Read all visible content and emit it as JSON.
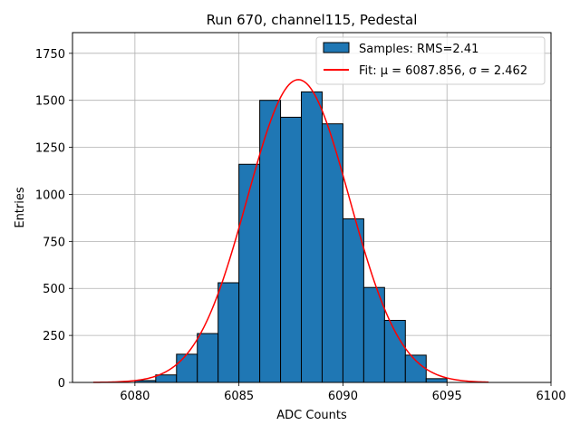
{
  "chart_data": {
    "type": "bar",
    "title": "Run 670, channel115, Pedestal",
    "xlabel": "ADC Counts",
    "ylabel": "Entries",
    "xlim": [
      6077,
      6100
    ],
    "ylim": [
      0,
      1860
    ],
    "xticks": [
      6080,
      6085,
      6090,
      6095,
      6100
    ],
    "yticks": [
      0,
      250,
      500,
      750,
      1000,
      1250,
      1500,
      1750
    ],
    "grid": true,
    "legend_position": "top-right",
    "histogram": {
      "name": "Samples: RMS=2.41",
      "color": "#1f77b4",
      "bin_edges": [
        6080,
        6081,
        6082,
        6083,
        6084,
        6085,
        6086,
        6087,
        6088,
        6089,
        6090,
        6091,
        6092,
        6093,
        6094,
        6095
      ],
      "values": [
        10,
        40,
        150,
        260,
        530,
        1160,
        1500,
        1410,
        1545,
        1375,
        870,
        505,
        330,
        145,
        20
      ]
    },
    "fit": {
      "name": "Fit: μ = 6087.856, σ = 2.462",
      "color": "#ff0000",
      "mu": 6087.856,
      "sigma": 2.462,
      "amplitude": 1610,
      "x_range": [
        6078,
        6097
      ]
    }
  }
}
